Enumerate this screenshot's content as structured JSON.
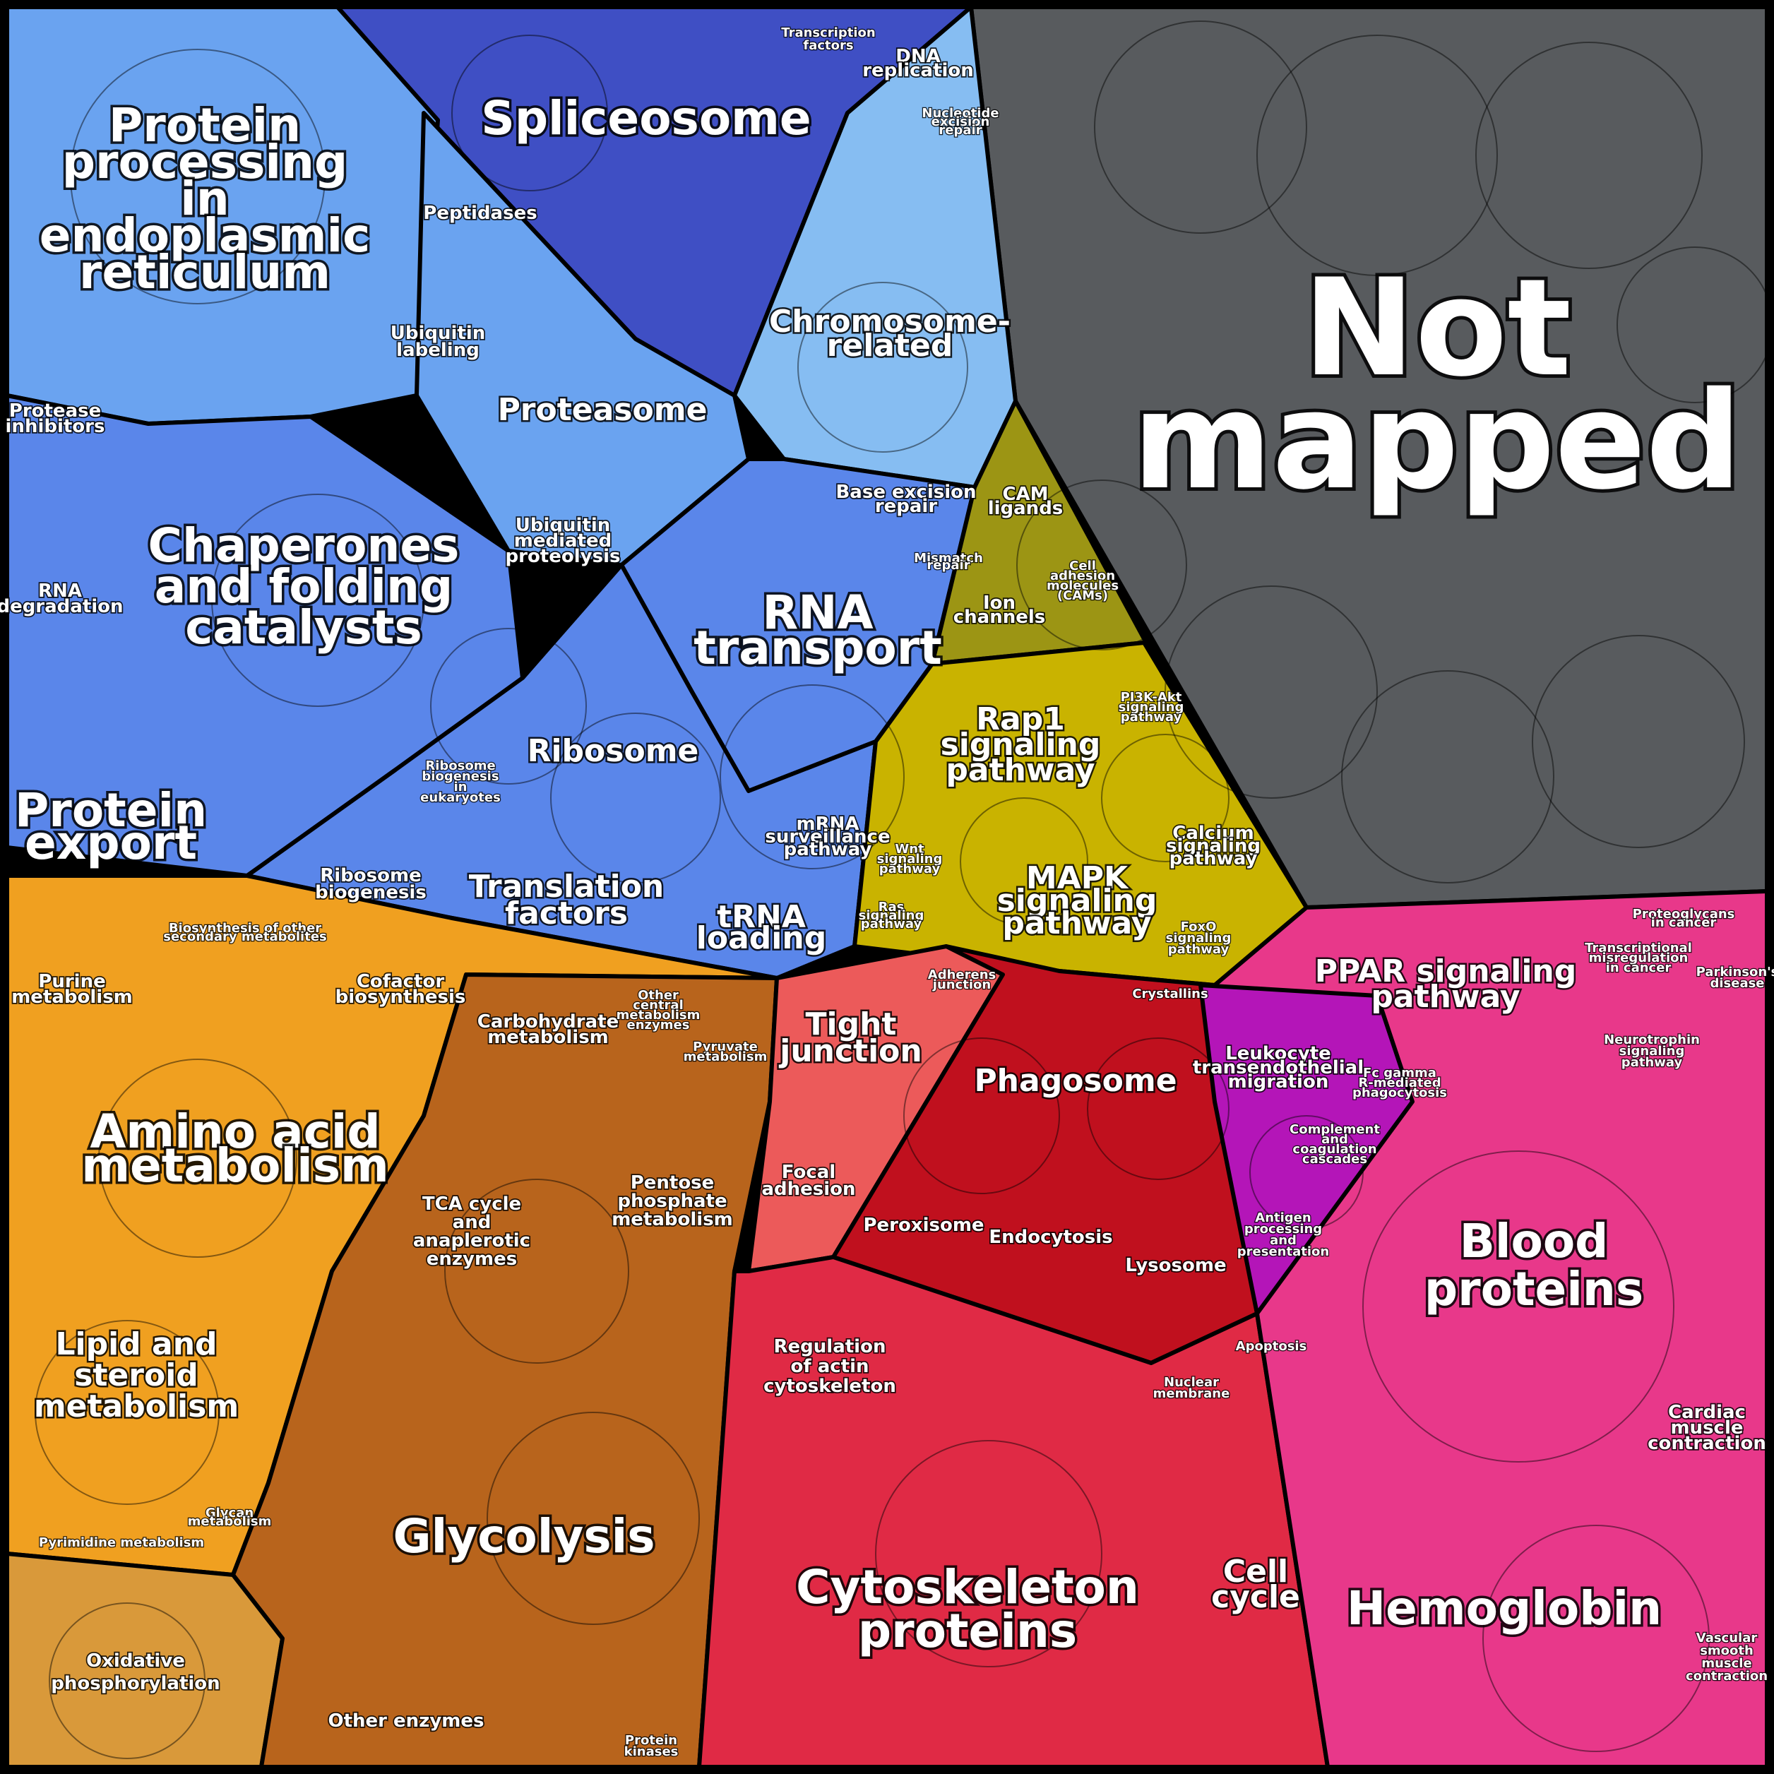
{
  "colors": {
    "not_mapped": "#585b5e",
    "blue_light": "#6aa3f0",
    "blue_mid": "#5a86ea",
    "blue_dark": "#3f4fc4",
    "sky": "#86bdf2",
    "yellow": "#c9b300",
    "olive": "#9c9514",
    "orange": "#f0a020",
    "amber": "#e89a1a",
    "brown": "#b8641c",
    "tan": "#d9993a",
    "red_light": "#ec5a5a",
    "crimson": "#c0101e",
    "red": "#e02a45",
    "magenta": "#e8388a",
    "pink": "#e84a86",
    "purple": "#b415b8"
  },
  "labels": {
    "not_mapped": [
      "Not",
      "mapped"
    ],
    "protein_processing": [
      "Protein",
      "processing",
      "in",
      "endoplasmic",
      "reticulum"
    ],
    "spliceosome": [
      "Spliceosome"
    ],
    "transcription_factors": [
      "Transcription",
      "factors"
    ],
    "dna_replication": [
      "DNA",
      "replication"
    ],
    "nucleotide_excision_repair": [
      "Nucleotide",
      "excision",
      "repair"
    ],
    "peptidases": [
      "Peptidases"
    ],
    "ubiquitin_labeling": [
      "Ubiquitin",
      "labeling"
    ],
    "chromosome_related": [
      "Chromosome-",
      "related"
    ],
    "protease_inhibitors": [
      "Protease",
      "inhibitors"
    ],
    "proteasome": [
      "Proteasome"
    ],
    "base_excision_repair": [
      "Base excision",
      "repair"
    ],
    "chaperones": [
      "Chaperones",
      "and folding",
      "catalysts"
    ],
    "ubiquitin_mediated": [
      "Ubiquitin",
      "mediated",
      "proteolysis"
    ],
    "mismatch_repair": [
      "Mismatch",
      "repair"
    ],
    "rna_degradation": [
      "RNA",
      "degradation"
    ],
    "rna_transport": [
      "RNA",
      "transport"
    ],
    "cam_ligands": [
      "CAM",
      "ligands"
    ],
    "ion_channels": [
      "Ion",
      "channels"
    ],
    "cell_adhesion_molecules": [
      "Cell",
      "adhesion",
      "molecules",
      "(CAMs)"
    ],
    "rap1": [
      "Rap1",
      "signaling",
      "pathway"
    ],
    "pi3k_akt": [
      "PI3K-Akt",
      "signaling",
      "pathway"
    ],
    "ribosome": [
      "Ribosome"
    ],
    "ribosome_biogenesis_eukaryotes": [
      "Ribosome",
      "biogenesis",
      "in",
      "eukaryotes"
    ],
    "protein_export": [
      "Protein",
      "export"
    ],
    "mrna_surveillance": [
      "mRNA",
      "surveillance",
      "pathway"
    ],
    "calcium_signaling": [
      "Calcium",
      "signaling",
      "pathway"
    ],
    "ribosome_biogenesis": [
      "Ribosome",
      "biogenesis"
    ],
    "translation_factors": [
      "Translation",
      "factors"
    ],
    "trna_loading": [
      "tRNA",
      "loading"
    ],
    "wnt_signaling": [
      "Wnt",
      "signaling",
      "pathway"
    ],
    "mapk": [
      "MAPK",
      "signaling",
      "pathway"
    ],
    "foxo": [
      "FoxO",
      "signaling",
      "pathway"
    ],
    "ras_signaling": [
      "Ras",
      "signaling",
      "pathway"
    ],
    "biosynthesis_secondary": [
      "Biosynthesis of other",
      "secondary metabolites"
    ],
    "purine_metabolism": [
      "Purine",
      "metabolism"
    ],
    "cofactor_biosynthesis": [
      "Cofactor",
      "biosynthesis"
    ],
    "carbohydrate_metabolism": [
      "Carbohydrate",
      "metabolism"
    ],
    "other_central_metabolism": [
      "Other",
      "central",
      "metabolism",
      "enzymes"
    ],
    "pyruvate_metabolism": [
      "Pyruvate",
      "metabolism"
    ],
    "tight_junction": [
      "Tight",
      "junction"
    ],
    "adherens_junction": [
      "Adherens",
      "junction"
    ],
    "crystallins": [
      "Crystallins"
    ],
    "phagosome": [
      "Phagosome"
    ],
    "ppar": [
      "PPAR signaling",
      "pathway"
    ],
    "parkinsons": [
      "Parkinson's",
      "disease"
    ],
    "transcriptional_misregulation": [
      "Transcriptional",
      "misregulation",
      "in cancer"
    ],
    "proteoglycans": [
      "Proteoglycans",
      "in cancer"
    ],
    "leukocyte": [
      "Leukocyte",
      "transendothelial",
      "migration"
    ],
    "fc_gamma": [
      "Fc gamma",
      "R-mediated",
      "phagocytosis"
    ],
    "neurotrophin": [
      "Neurotrophin",
      "signaling",
      "pathway"
    ],
    "amino_acid": [
      "Amino acid",
      "metabolism"
    ],
    "pentose_phosphate": [
      "Pentose",
      "phosphate",
      "metabolism"
    ],
    "focal_adhesion": [
      "Focal",
      "adhesion"
    ],
    "complement": [
      "Complement",
      "and",
      "coagulation",
      "cascades"
    ],
    "tca_cycle": [
      "TCA cycle",
      "and",
      "anaplerotic",
      "enzymes"
    ],
    "peroxisome": [
      "Peroxisome"
    ],
    "endocytosis": [
      "Endocytosis"
    ],
    "lysosome": [
      "Lysosome"
    ],
    "antigen_processing": [
      "Antigen",
      "processing",
      "and",
      "presentation"
    ],
    "blood_proteins": [
      "Blood",
      "proteins"
    ],
    "lipid_steroid": [
      "Lipid and",
      "steroid",
      "metabolism"
    ],
    "regulation_actin": [
      "Regulation",
      "of actin",
      "cytoskeleton"
    ],
    "apoptosis": [
      "Apoptosis"
    ],
    "nuclear_membrane": [
      "Nuclear",
      "membrane"
    ],
    "cardiac_muscle": [
      "Cardiac",
      "muscle",
      "contraction"
    ],
    "glycan_metabolism": [
      "Glycan",
      "metabolism"
    ],
    "pyrimidine_metabolism": [
      "Pyrimidine metabolism"
    ],
    "glycolysis": [
      "Glycolysis"
    ],
    "cell_cycle": [
      "Cell",
      "cycle"
    ],
    "cytoskeleton_proteins": [
      "Cytoskeleton",
      "proteins"
    ],
    "hemoglobin": [
      "Hemoglobin"
    ],
    "oxidative_phosphorylation": [
      "Oxidative",
      "phosphorylation"
    ],
    "vascular_smooth_muscle": [
      "Vascular",
      "smooth",
      "muscle",
      "contraction"
    ],
    "other_enzymes": [
      "Other enzymes"
    ],
    "protein_kinases": [
      "Protein",
      "kinases"
    ]
  }
}
